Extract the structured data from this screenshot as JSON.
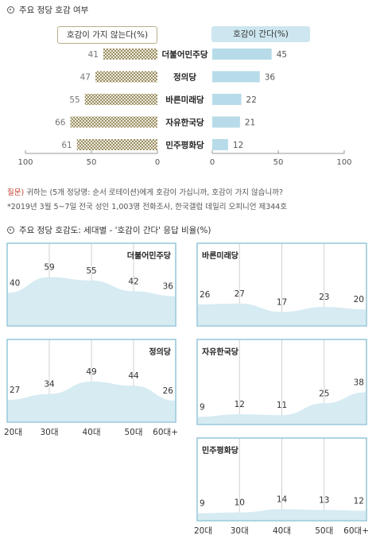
{
  "section1": {
    "title": "주요 정당 호감 여부",
    "legend_negative": "호감이 가지 않는다(%)",
    "legend_positive": "호감이 간다(%)"
  },
  "note": {
    "question_label": "질문)",
    "question_text": "귀하는 (5개 정당명: 순서 로테이션)에게 호감이 가십니까, 호감이 가지 않습니까?",
    "source": "*2019년 3월 5~7일 전국 성인 1,003명 전화조사, 한국갤럽 데일리 오피니언 제344호"
  },
  "section2": {
    "title": "주요 정당 호감도: 세대별 - '호감이 간다' 응답 비율(%)"
  },
  "colors": {
    "positive_bar": "#b7dbe8",
    "negative_bar_light": "#eeeadb",
    "negative_bar_dark": "#9b9068",
    "area_fill": "#d6ebf2",
    "panel_border": "#9ccbdc"
  },
  "chart_data": [
    {
      "type": "bar",
      "orientation": "horizontal-diverging",
      "categories": [
        "더불어민주당",
        "정의당",
        "바른미래당",
        "자유한국당",
        "민주평화당"
      ],
      "series": [
        {
          "name": "호감이 가지 않는다(%)",
          "values": [
            41,
            47,
            55,
            66,
            61
          ]
        },
        {
          "name": "호감이 간다(%)",
          "values": [
            45,
            36,
            22,
            21,
            12
          ]
        }
      ],
      "left_axis": {
        "range": [
          100,
          0
        ],
        "ticks": [
          100,
          50,
          0
        ]
      },
      "right_axis": {
        "range": [
          0,
          100
        ],
        "ticks": [
          0,
          50,
          100
        ]
      },
      "ylabel_left_ticks": [
        "100",
        "50",
        "0"
      ],
      "ylabel_right_ticks": [
        "0",
        "50",
        "100"
      ]
    },
    {
      "type": "area",
      "categories": [
        "20대",
        "30대",
        "40대",
        "50대",
        "60대+"
      ],
      "panels": [
        {
          "name": "더불어민주당",
          "values": [
            40,
            59,
            55,
            42,
            36
          ]
        },
        {
          "name": "바른미래당",
          "values": [
            26,
            27,
            17,
            23,
            20
          ]
        },
        {
          "name": "정의당",
          "values": [
            27,
            34,
            49,
            44,
            26
          ]
        },
        {
          "name": "자유한국당",
          "values": [
            9,
            12,
            11,
            25,
            38
          ]
        },
        {
          "name": "민주평화당",
          "values": [
            9,
            10,
            14,
            13,
            12
          ]
        }
      ],
      "ylim": [
        0,
        100
      ],
      "grid": "vertical"
    }
  ]
}
